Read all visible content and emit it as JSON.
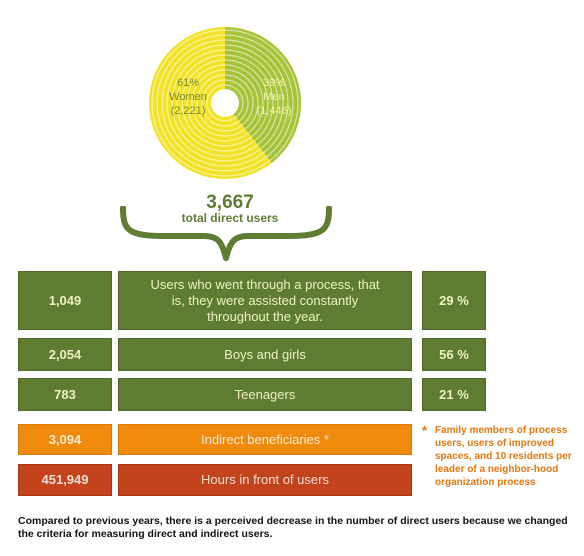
{
  "chart_data": {
    "type": "pie",
    "slices": [
      {
        "label": "Women",
        "percent_label": "61%",
        "count_label": "(2,221)",
        "value": 2221,
        "color": "#f2e32a"
      },
      {
        "label": "Men",
        "percent_label": "39%",
        "count_label": "(1,446)",
        "value": 1446,
        "color": "#a6c43a"
      }
    ],
    "total_value": "3,667",
    "total_label": "total direct users",
    "text_color_women": "#7a8a2a",
    "text_color_men": "#f4f1a8"
  },
  "rows": [
    {
      "value": "1,049",
      "label": "Users who went through a process, that is, they were assisted constantly throughout the year.",
      "percent": "29 %",
      "color": "green"
    },
    {
      "value": "2,054",
      "label": "Boys and girls",
      "percent": "56 %",
      "color": "green"
    },
    {
      "value": "783",
      "label": "Teenagers",
      "percent": "21 %",
      "color": "green"
    },
    {
      "value": "3,094",
      "label": "Indirect beneficiaries *",
      "color": "orange"
    },
    {
      "value": "451,949",
      "label": "Hours in front of users",
      "color": "red"
    }
  ],
  "note": {
    "marker": "*",
    "text": "Family members of process users, users of improved spaces, and 10 residents per leader of a neighbor-hood organization process"
  },
  "footer": "Compared to previous years, there is a perceived decrease in the number of direct users because we changed the criteria for measuring direct and indirect users.",
  "colors": {
    "green": "#5e7d32",
    "orange": "#f08a0c",
    "red": "#c3431d",
    "brace": "#5e7d32"
  }
}
